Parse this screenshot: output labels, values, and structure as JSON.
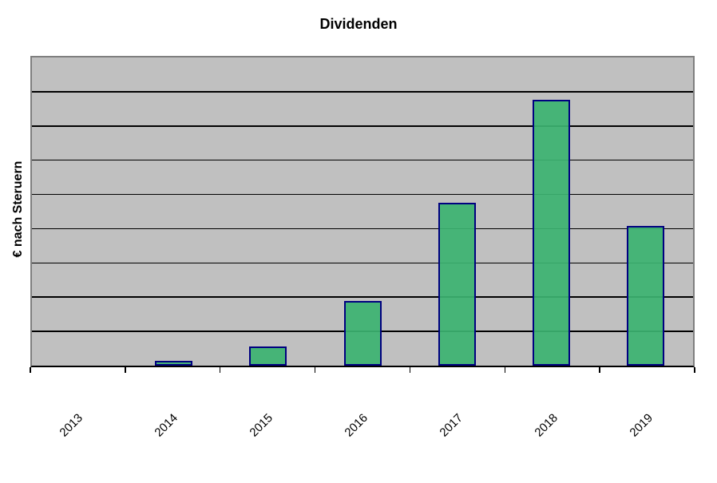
{
  "chart_data": {
    "type": "bar",
    "title": "Dividenden",
    "ylabel": "€ nach Steruern",
    "xlabel": "",
    "categories": [
      "2013",
      "2014",
      "2015",
      "2016",
      "2017",
      "2018",
      "2019"
    ],
    "values": [
      0,
      0.14,
      0.56,
      1.88,
      4.75,
      7.76,
      4.07
    ],
    "value_scale": "relative gridline units; y-axis shows no numeric tick labels",
    "ylim": [
      0,
      9
    ],
    "y_bands": 9,
    "grid": "horizontal",
    "legend": "none",
    "colors": {
      "page_background": "#ffffff",
      "plot_background": "#c0c0c0",
      "gridline": "#000000",
      "plot_border": "#7f7f7f",
      "axis": "#000000",
      "bar_fill": "#3cb371",
      "bar_border": "#000080",
      "text": "#000000"
    }
  }
}
